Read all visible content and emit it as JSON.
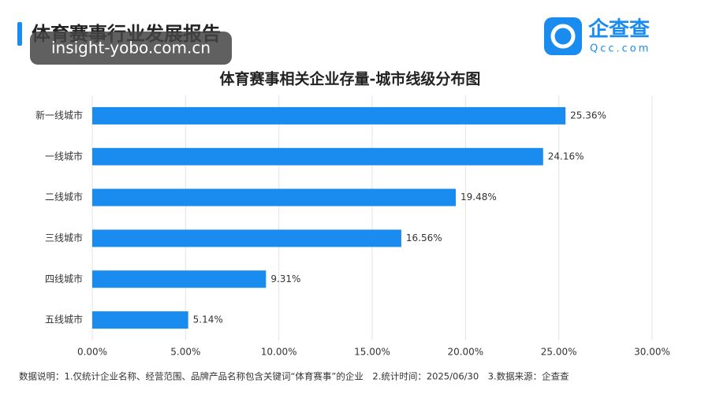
{
  "header": {
    "title": "体育赛事行业发展报告",
    "watermark": "insight-yobo.com.cn",
    "logo_name": "企查查",
    "logo_domain": "Qcc.com"
  },
  "chart_data": {
    "type": "bar",
    "orientation": "horizontal",
    "title": "体育赛事相关企业存量-城市线级分布图",
    "categories": [
      "新一线城市",
      "一线城市",
      "二线城市",
      "三线城市",
      "四线城市",
      "五线城市"
    ],
    "values": [
      25.36,
      24.16,
      19.48,
      16.56,
      9.31,
      5.14
    ],
    "value_labels": [
      "25.36%",
      "24.16%",
      "19.48%",
      "16.56%",
      "9.31%",
      "5.14%"
    ],
    "color": "#1a8cef",
    "xlim": [
      0,
      30
    ],
    "xticks": [
      {
        "value": 0,
        "label": "0.00%"
      },
      {
        "value": 5,
        "label": "5.00%"
      },
      {
        "value": 10,
        "label": "10.00%"
      },
      {
        "value": 15,
        "label": "15.00%"
      },
      {
        "value": 20,
        "label": "20.00%"
      },
      {
        "value": 25,
        "label": "25.00%"
      },
      {
        "value": 30,
        "label": "30.00%"
      }
    ],
    "grid": true
  },
  "footnote": "数据说明：1.仅统计企业名称、经营范围、品牌产品名称包含关键词“体育赛事”的企业　2.统计时间：2025/06/30　3.数据来源：企查查"
}
